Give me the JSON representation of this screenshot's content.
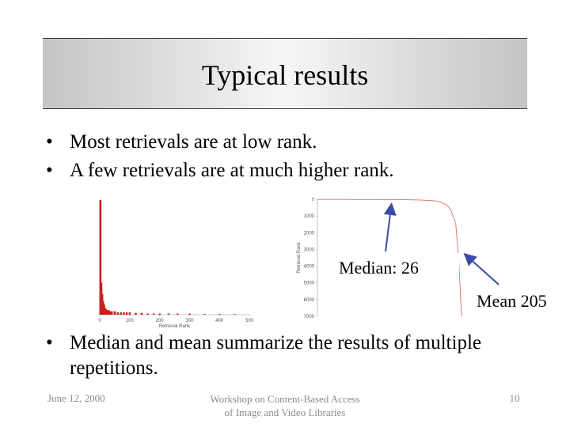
{
  "slide": {
    "title": "Typical results",
    "bullets": [
      "Most retrievals are at low rank.",
      "A few retrievals are at much higher rank."
    ],
    "bullets2": [
      "Median and mean summarize the results of multiple repetitions."
    ],
    "annotations": {
      "median": "Median:  26",
      "mean": "Mean 205"
    },
    "footer": {
      "date": "June 12, 2000",
      "center_line1": "Workshop on Content-Based Access",
      "center_line2": "of Image and Video Libraries",
      "page": "10"
    },
    "colors": {
      "bar": "#cc1f1f",
      "curve": "#e07a7a",
      "arrow": "#3a4aa8"
    }
  },
  "chart_data": [
    {
      "type": "bar",
      "xlabel": "Retrieval Rank",
      "ylabel": "",
      "x_ticks": [
        "0",
        "100",
        "200",
        "300",
        "400",
        "500"
      ],
      "xlim": [
        0,
        500
      ],
      "ylim": [
        0,
        100
      ],
      "x": [
        2,
        5,
        8,
        11,
        14,
        17,
        20,
        25,
        30,
        35,
        40,
        50,
        60,
        70,
        80,
        90,
        100,
        120,
        140,
        160,
        180,
        200,
        230,
        260,
        300,
        350,
        400,
        450
      ],
      "values": [
        100,
        28,
        18,
        12,
        9,
        6,
        5,
        4,
        4,
        3,
        3,
        3,
        2,
        2,
        2,
        2,
        2,
        1.5,
        1.5,
        1,
        1,
        1,
        1,
        1,
        1,
        0.6,
        0.6,
        0.5
      ]
    },
    {
      "type": "line",
      "xlabel": "",
      "ylabel": "Retrieval Rank",
      "y_ticks": [
        "0",
        "1000",
        "2000",
        "3000",
        "4000",
        "5000",
        "6000",
        "7000"
      ],
      "ylim": [
        0,
        7000
      ],
      "xlim": [
        0,
        1
      ],
      "x": [
        0.0,
        0.2,
        0.4,
        0.5,
        0.6,
        0.7,
        0.8,
        0.85,
        0.9,
        0.93,
        0.96,
        0.98,
        1.0
      ],
      "values": [
        5,
        10,
        15,
        20,
        26,
        40,
        80,
        150,
        350,
        700,
        1500,
        3500,
        7000
      ]
    }
  ]
}
